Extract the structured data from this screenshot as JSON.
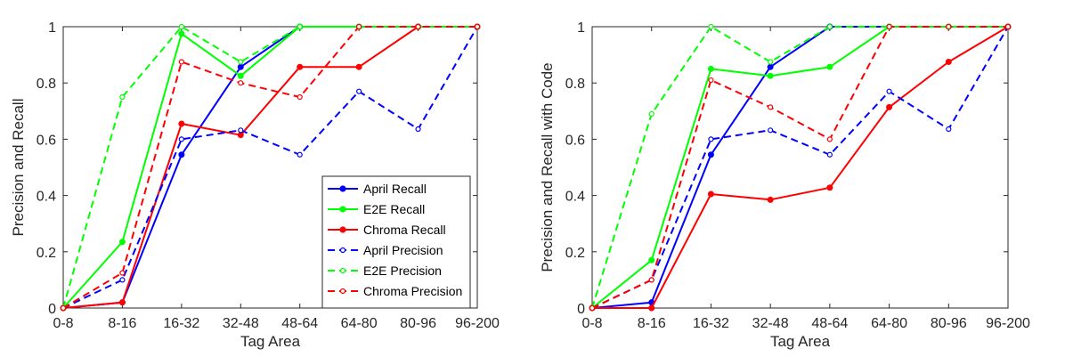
{
  "chart_data": [
    {
      "type": "line",
      "xlabel": "Tag Area",
      "ylabel": "Precision and Recall",
      "categories": [
        "0-8",
        "8-16",
        "16-32",
        "32-48",
        "48-64",
        "64-80",
        "80-96",
        "96-200"
      ],
      "ylim": [
        0,
        1
      ],
      "yticks": [
        "0",
        "0.2",
        "0.4",
        "0.6",
        "0.8",
        "1"
      ],
      "legend_position": "bottom-right",
      "series": [
        {
          "name": "April Recall",
          "color": "#0000ff",
          "style": "solid",
          "marker": "filled",
          "values": [
            0,
            0.02,
            0.545,
            0.857,
            1,
            1,
            1,
            1
          ]
        },
        {
          "name": "E2E Recall",
          "color": "#00ff00",
          "style": "solid",
          "marker": "filled",
          "values": [
            0,
            0.235,
            0.975,
            0.825,
            1,
            1,
            1,
            1
          ]
        },
        {
          "name": "Chroma Recall",
          "color": "#ff0000",
          "style": "solid",
          "marker": "filled",
          "values": [
            0,
            0.02,
            0.655,
            0.615,
            0.857,
            0.857,
            1,
            1
          ]
        },
        {
          "name": "April Precision",
          "color": "#0000ff",
          "style": "dashed",
          "marker": "open",
          "values": [
            0,
            0.1,
            0.6,
            0.632,
            0.545,
            0.77,
            0.636,
            1
          ]
        },
        {
          "name": "E2E Precision",
          "color": "#00ff00",
          "style": "dashed",
          "marker": "open",
          "values": [
            0,
            0.75,
            1,
            0.875,
            1,
            1,
            1,
            1
          ]
        },
        {
          "name": "Chroma Precision",
          "color": "#ff0000",
          "style": "dashed",
          "marker": "open",
          "values": [
            0,
            0.125,
            0.875,
            0.8,
            0.75,
            1,
            1,
            1
          ]
        }
      ]
    },
    {
      "type": "line",
      "xlabel": "Tag Area",
      "ylabel": "Precision and Recall with Code",
      "categories": [
        "0-8",
        "8-16",
        "16-32",
        "32-48",
        "48-64",
        "64-80",
        "80-96",
        "96-200"
      ],
      "ylim": [
        0,
        1
      ],
      "yticks": [
        "0",
        "0.2",
        "0.4",
        "0.6",
        "0.8",
        "1"
      ],
      "series": [
        {
          "name": "April Recall",
          "color": "#0000ff",
          "style": "solid",
          "marker": "filled",
          "values": [
            0,
            0.02,
            0.545,
            0.857,
            1,
            1,
            1,
            1
          ]
        },
        {
          "name": "E2E Recall",
          "color": "#00ff00",
          "style": "solid",
          "marker": "filled",
          "values": [
            0,
            0.17,
            0.85,
            0.825,
            0.857,
            1,
            1,
            1
          ]
        },
        {
          "name": "Chroma Recall",
          "color": "#ff0000",
          "style": "solid",
          "marker": "filled",
          "values": [
            0,
            0,
            0.405,
            0.385,
            0.428,
            0.714,
            0.875,
            1
          ]
        },
        {
          "name": "April Precision",
          "color": "#0000ff",
          "style": "dashed",
          "marker": "open",
          "values": [
            0,
            0.1,
            0.6,
            0.632,
            0.545,
            0.77,
            0.636,
            1
          ]
        },
        {
          "name": "E2E Precision",
          "color": "#00ff00",
          "style": "dashed",
          "marker": "open",
          "values": [
            0,
            0.69,
            1,
            0.875,
            1,
            1,
            1,
            1
          ]
        },
        {
          "name": "Chroma Precision",
          "color": "#ff0000",
          "style": "dashed",
          "marker": "open",
          "values": [
            0,
            0.1,
            0.81,
            0.714,
            0.6,
            1,
            1,
            1
          ]
        }
      ]
    }
  ]
}
